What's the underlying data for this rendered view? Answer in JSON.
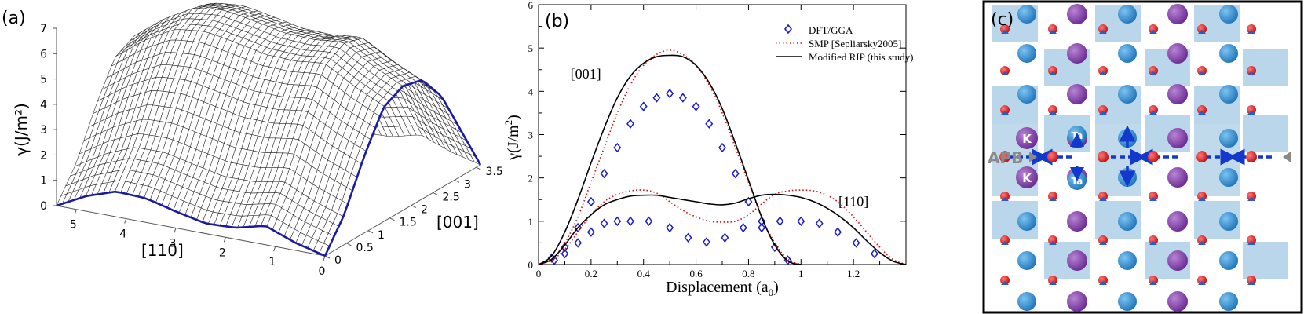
{
  "panels": {
    "a": {
      "label": "(a)"
    },
    "b": {
      "label": "(b)"
    },
    "c": {
      "label": "(c)"
    }
  },
  "chart_data": [
    {
      "id": "a",
      "type": "surface",
      "title": "",
      "xlabel": "[110]",
      "ylabel": "[001]",
      "zlabel": "γ(J/m²)",
      "x_ticks": [
        "0",
        "1",
        "2",
        "3",
        "4",
        "5"
      ],
      "y_ticks": [
        "0",
        "0.5",
        "1",
        "1.5",
        "2",
        "2.5",
        "3",
        "3.5"
      ],
      "z_ticks": [
        "0",
        "1",
        "2",
        "3",
        "4",
        "5",
        "6",
        "7"
      ],
      "xlim": [
        0,
        5.4
      ],
      "ylim": [
        0,
        3.6
      ],
      "zlim": [
        0,
        7
      ],
      "boundary_profiles": {
        "along_110_at_001_zero": {
          "x": [
            0,
            0.6,
            1.2,
            1.8,
            2.4,
            3.0,
            3.6,
            4.2,
            4.8,
            5.4
          ],
          "z": [
            0,
            0.3,
            0.75,
            0.45,
            0.4,
            0.65,
            0.95,
            1.0,
            0.6,
            0
          ]
        },
        "along_001_at_110_zero": {
          "y": [
            0,
            0.45,
            0.9,
            1.35,
            1.8,
            2.25,
            2.7,
            3.15,
            3.6
          ],
          "z": [
            0,
            1.2,
            3.0,
            4.5,
            4.9,
            4.7,
            3.6,
            1.8,
            0
          ]
        }
      },
      "grid": true,
      "edge_color": "#1a1aa6"
    },
    {
      "id": "b",
      "type": "line",
      "title": "",
      "xlabel": "Displacement (a",
      "xlabel_sub": "0",
      "xlabel_end": ")",
      "ylabel": "γ(J/m",
      "ylabel_sup": "2",
      "ylabel_end": ")",
      "xlim": [
        0,
        1.4
      ],
      "ylim": [
        0,
        6
      ],
      "x_ticks": [
        0,
        0.2,
        0.4,
        0.6,
        0.8,
        1,
        1.2
      ],
      "x_tick_labels": [
        "0",
        "0.2",
        "0.4",
        "0.6",
        "0.8",
        "1",
        "1.2"
      ],
      "y_ticks": [
        0,
        1,
        2,
        3,
        4,
        5,
        6
      ],
      "legend_position": "top-right",
      "legend": [
        "DFT/GGA",
        "SMP [Sepliarsky2005]",
        "Modified RIP (this study)"
      ],
      "annotations": [
        {
          "text": "[001]",
          "x": 0.18,
          "y": 4.3
        },
        {
          "text": "[110]",
          "x": 1.2,
          "y": 1.35
        }
      ],
      "series": [
        {
          "name": "DFT/GGA",
          "style": "diamond",
          "color": "#1a1acc",
          "group": "[001]",
          "x": [
            0.05,
            0.1,
            0.15,
            0.2,
            0.25,
            0.3,
            0.35,
            0.4,
            0.45,
            0.5,
            0.55,
            0.6,
            0.65,
            0.7,
            0.75,
            0.8,
            0.85,
            0.9,
            0.95
          ],
          "y": [
            0.15,
            0.4,
            0.85,
            1.45,
            2.1,
            2.7,
            3.25,
            3.65,
            3.85,
            3.95,
            3.85,
            3.65,
            3.25,
            2.7,
            2.1,
            1.45,
            0.85,
            0.4,
            0.1
          ]
        },
        {
          "name": "DFT/GGA",
          "style": "diamond",
          "color": "#1a1acc",
          "group": "[110]",
          "x": [
            0.06,
            0.1,
            0.15,
            0.2,
            0.25,
            0.3,
            0.35,
            0.42,
            0.5,
            0.57,
            0.64,
            0.71,
            0.78,
            0.85,
            0.92,
            1.0,
            1.07,
            1.14,
            1.21,
            1.28
          ],
          "y": [
            0.1,
            0.25,
            0.5,
            0.75,
            0.95,
            1.0,
            1.0,
            1.0,
            0.85,
            0.62,
            0.52,
            0.62,
            0.85,
            1.0,
            1.0,
            1.0,
            0.95,
            0.75,
            0.5,
            0.25
          ]
        },
        {
          "name": "SMP [Sepliarsky2005]",
          "style": "dotted",
          "color": "#e01010",
          "group": "[001]",
          "x": [
            0,
            0.05,
            0.1,
            0.15,
            0.2,
            0.25,
            0.3,
            0.35,
            0.4,
            0.45,
            0.5,
            0.55,
            0.6,
            0.65,
            0.7,
            0.75,
            0.8,
            0.85,
            0.9,
            0.95,
            1.0
          ],
          "y": [
            0,
            0.12,
            0.5,
            1.1,
            1.9,
            2.7,
            3.5,
            4.15,
            4.6,
            4.85,
            4.95,
            4.85,
            4.6,
            4.15,
            3.5,
            2.7,
            1.9,
            1.1,
            0.5,
            0.12,
            0
          ]
        },
        {
          "name": "SMP [Sepliarsky2005]",
          "style": "dotted",
          "color": "#e01010",
          "group": "[110]",
          "x": [
            0,
            0.05,
            0.1,
            0.15,
            0.2,
            0.25,
            0.3,
            0.35,
            0.4,
            0.45,
            0.5,
            0.55,
            0.6,
            0.65,
            0.7,
            0.75,
            0.8,
            0.85,
            0.9,
            0.95,
            1.0,
            1.05,
            1.1,
            1.15,
            1.2,
            1.25,
            1.3,
            1.35,
            1.4
          ],
          "y": [
            0,
            0.1,
            0.35,
            0.75,
            1.15,
            1.45,
            1.62,
            1.7,
            1.72,
            1.65,
            1.45,
            1.25,
            1.1,
            1.0,
            0.98,
            1.0,
            1.15,
            1.4,
            1.62,
            1.7,
            1.72,
            1.7,
            1.6,
            1.4,
            1.1,
            0.75,
            0.4,
            0.12,
            0
          ]
        },
        {
          "name": "Modified RIP (this study)",
          "style": "solid",
          "color": "#000000",
          "group": "[001]",
          "x": [
            0,
            0.05,
            0.1,
            0.15,
            0.2,
            0.25,
            0.3,
            0.35,
            0.4,
            0.45,
            0.5,
            0.55,
            0.6,
            0.65,
            0.7,
            0.75,
            0.8,
            0.85,
            0.9,
            0.95,
            1.0
          ],
          "y": [
            0,
            0.2,
            0.75,
            1.5,
            2.35,
            3.15,
            3.85,
            4.35,
            4.65,
            4.8,
            4.83,
            4.8,
            4.6,
            4.2,
            3.6,
            2.8,
            1.95,
            1.1,
            0.45,
            0.08,
            0
          ]
        },
        {
          "name": "Modified RIP (this study)",
          "style": "solid",
          "color": "#000000",
          "group": "[110]",
          "x": [
            0,
            0.05,
            0.1,
            0.15,
            0.2,
            0.25,
            0.3,
            0.35,
            0.4,
            0.45,
            0.5,
            0.55,
            0.6,
            0.65,
            0.7,
            0.75,
            0.8,
            0.85,
            0.9,
            0.95,
            1.0,
            1.05,
            1.1,
            1.15,
            1.2,
            1.25,
            1.3,
            1.35,
            1.4
          ],
          "y": [
            0,
            0.12,
            0.45,
            0.85,
            1.15,
            1.38,
            1.5,
            1.58,
            1.6,
            1.6,
            1.55,
            1.5,
            1.45,
            1.4,
            1.38,
            1.42,
            1.52,
            1.6,
            1.62,
            1.6,
            1.55,
            1.45,
            1.3,
            1.1,
            0.85,
            0.55,
            0.28,
            0.08,
            0
          ]
        }
      ]
    }
  ],
  "schematic": {
    "id": "c",
    "labels": {
      "apb": "APB",
      "k": "K",
      "ta": "Ta"
    },
    "colors": {
      "cell": "#b9d6ea",
      "k_atom": "#8a3fb0",
      "ta_atom": "#2d8fd5",
      "o_atom": "#e01b1b",
      "arrow": "#1338cc",
      "apb_text": "#8a8a8a"
    },
    "rows": 8,
    "cols": 6
  }
}
